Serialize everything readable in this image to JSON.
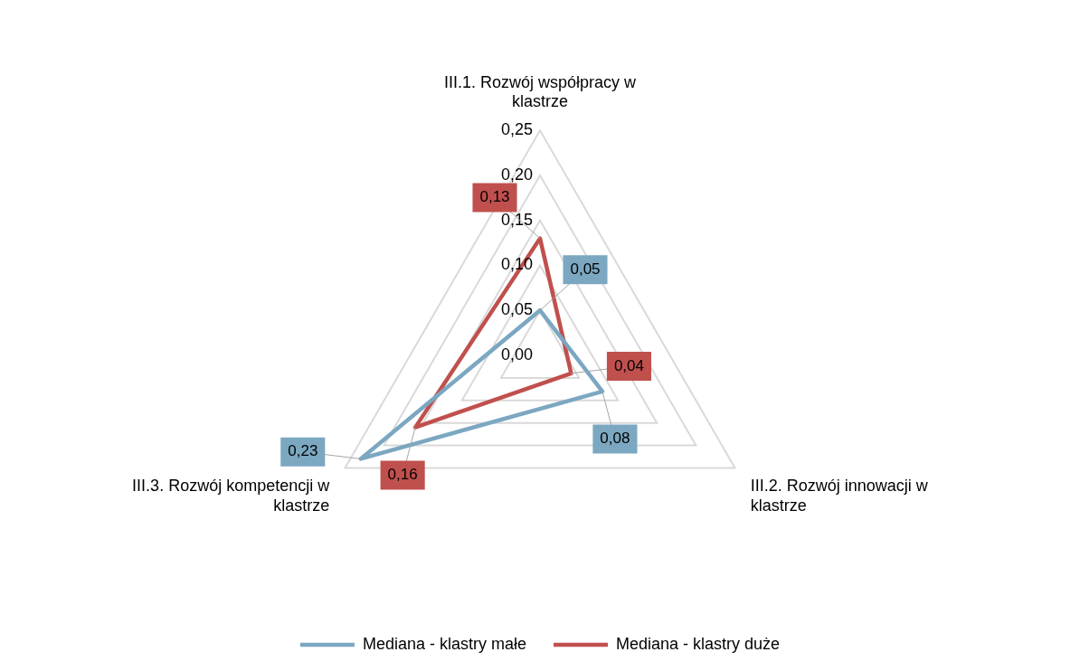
{
  "chart_data": {
    "type": "radar",
    "categories": [
      "III.1. Rozwój współpracy w klastrze",
      "III.2. Rozwój innowacji w klastrze",
      "III.3. Rozwój kompetencji w klastrze"
    ],
    "series": [
      {
        "name": "Mediana - klastry małe",
        "color": "#7ba7c1",
        "values": [
          0.05,
          0.08,
          0.23
        ],
        "value_labels": [
          "0,05",
          "0,08",
          "0,23"
        ]
      },
      {
        "name": "Mediana - klastry duże",
        "color": "#c0504d",
        "values": [
          0.13,
          0.04,
          0.16
        ],
        "value_labels": [
          "0,13",
          "0,04",
          "0,16"
        ]
      }
    ],
    "ylim": [
      0,
      0.25
    ],
    "yticks": [
      {
        "value": 0,
        "label": "0,00"
      },
      {
        "value": 0.05,
        "label": "0,05"
      },
      {
        "value": 0.1,
        "label": "0,10"
      },
      {
        "value": 0.15,
        "label": "0,15"
      },
      {
        "value": 0.2,
        "label": "0,20"
      },
      {
        "value": 0.25,
        "label": "0,25"
      }
    ],
    "grid": true,
    "legend": "bottom",
    "marker": "none",
    "line_style": "solid"
  }
}
